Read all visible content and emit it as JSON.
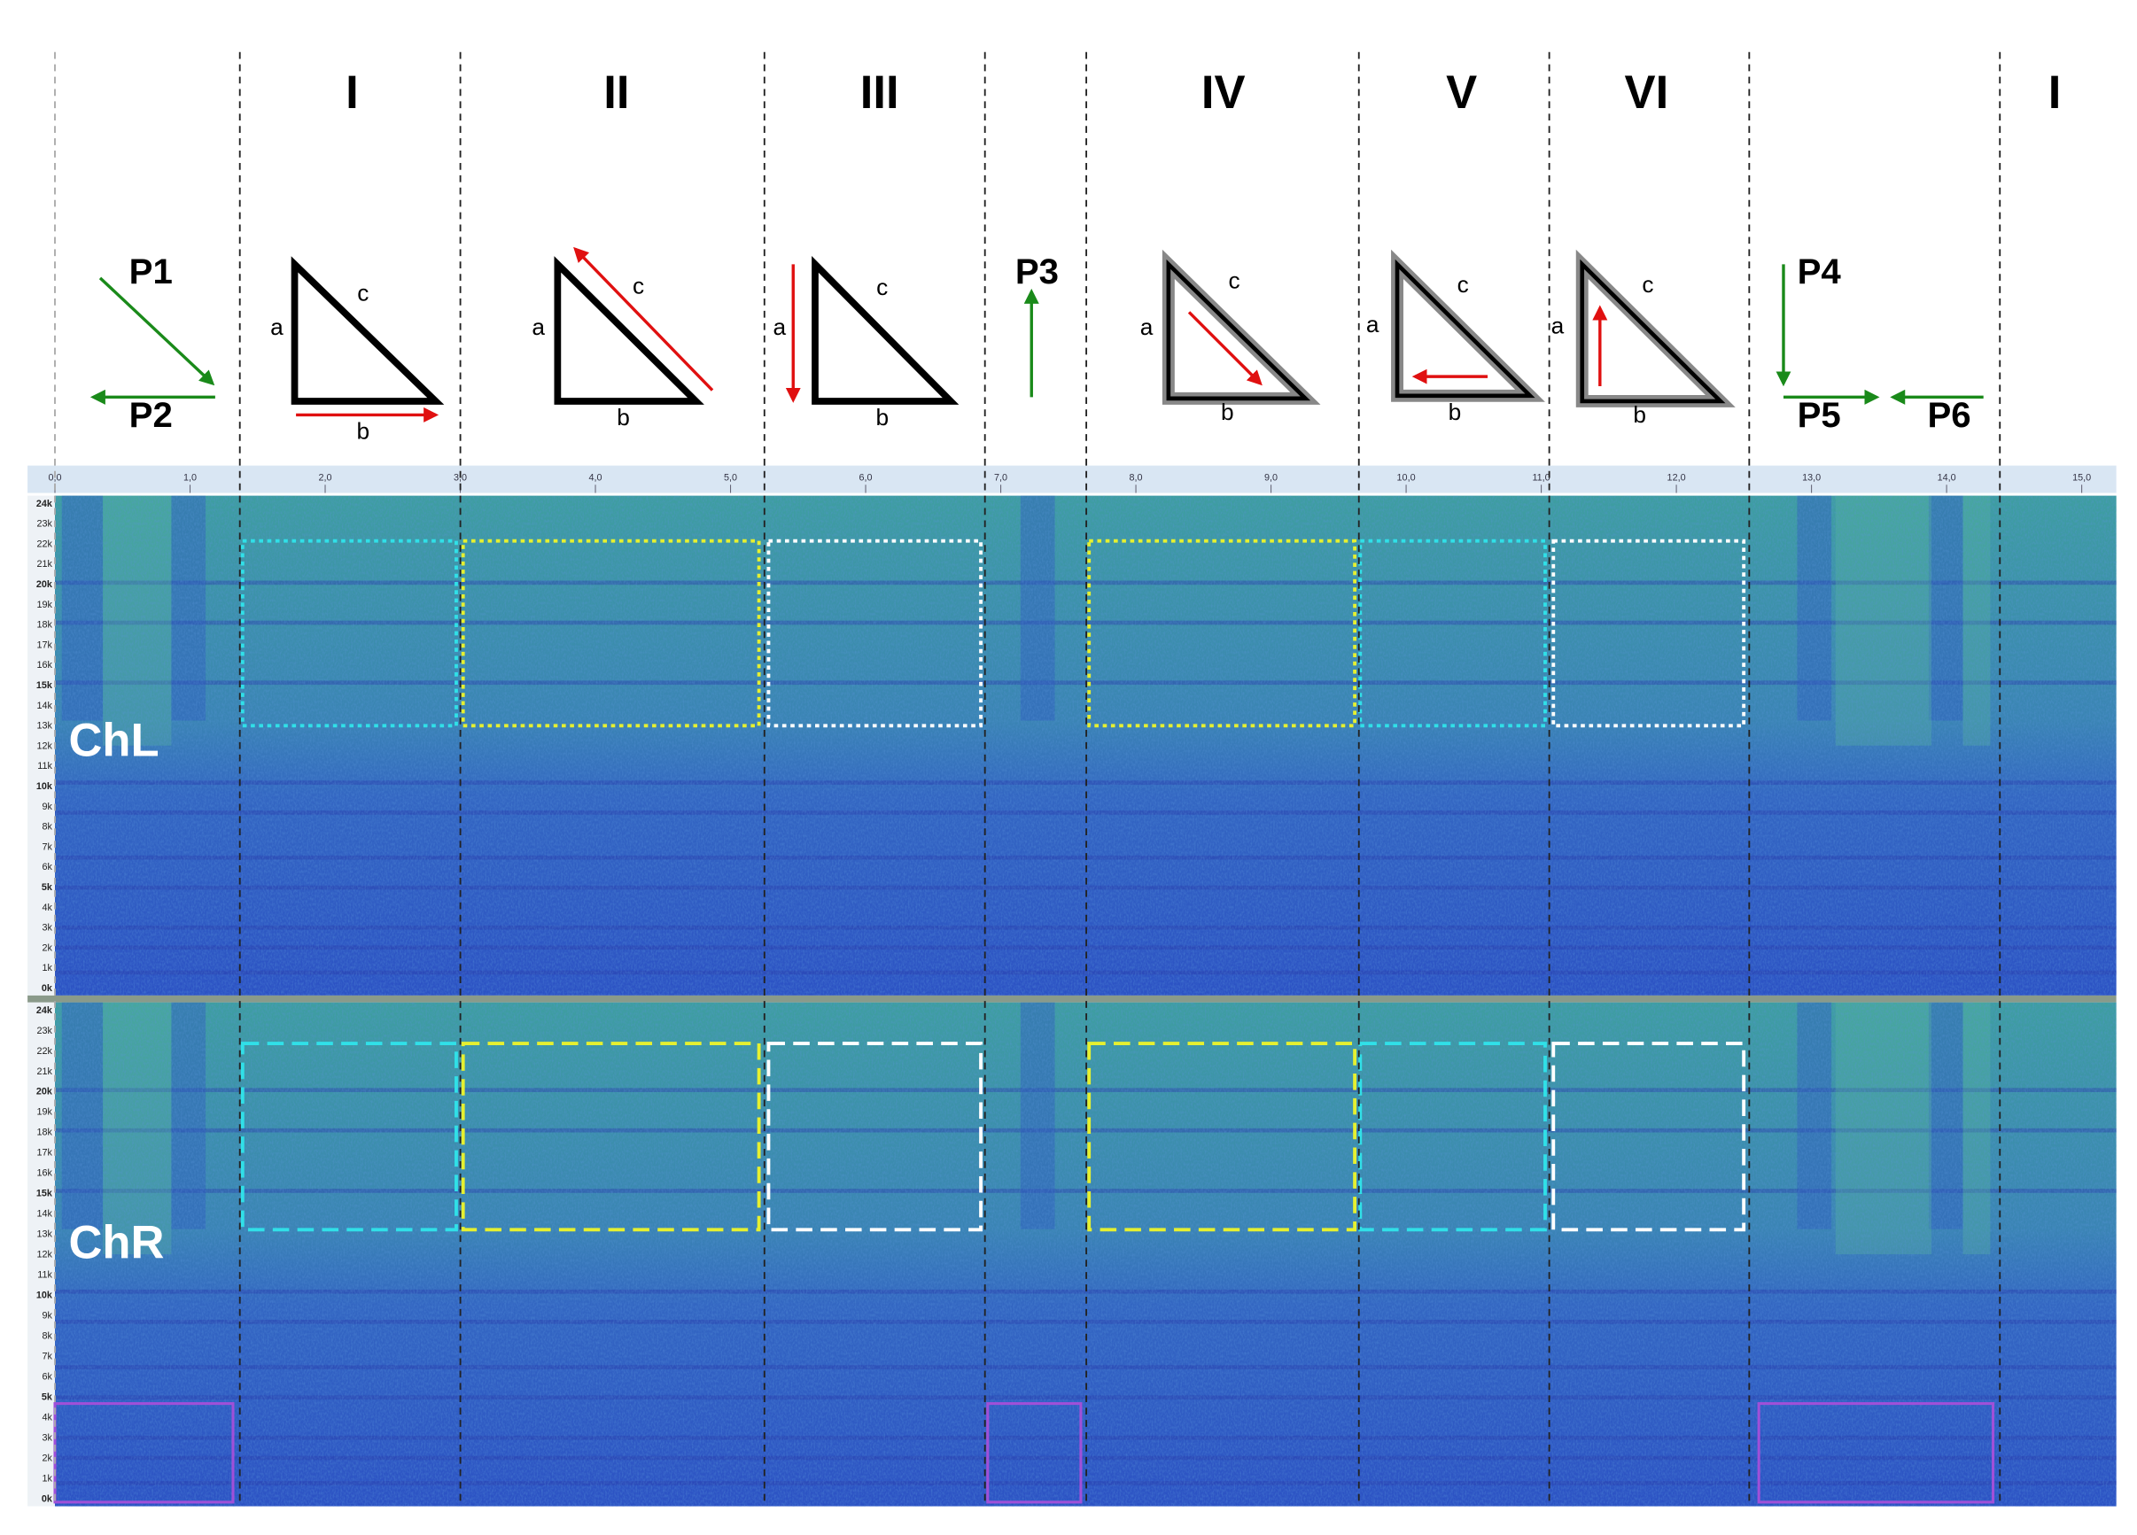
{
  "sections": [
    "I",
    "II",
    "III",
    "IV",
    "V",
    "VI",
    "I"
  ],
  "triangles": [
    {
      "a": "a",
      "b": "b",
      "c": "c"
    },
    {
      "a": "a",
      "b": "b",
      "c": "c"
    },
    {
      "a": "a",
      "b": "b",
      "c": "c"
    },
    {
      "a": "a",
      "b": "b",
      "c": "c"
    },
    {
      "a": "a",
      "b": "b",
      "c": "c"
    },
    {
      "a": "a",
      "b": "b",
      "c": "c"
    }
  ],
  "paths": [
    "P1",
    "P2",
    "P3",
    "P4",
    "P5",
    "P6"
  ],
  "time_axis": [
    "0,0",
    "1,0",
    "2,0",
    "3,0",
    "4,0",
    "5,0",
    "6,0",
    "7,0",
    "8,0",
    "9,0",
    "10,0",
    "11,0",
    "12,0",
    "13,0",
    "14,0",
    "15,0"
  ],
  "channels": [
    {
      "label": "ChL",
      "freq_labels": [
        "24k",
        "23k",
        "22k",
        "21k",
        "20k",
        "19k",
        "18k",
        "17k",
        "16k",
        "15k",
        "14k",
        "13k",
        "12k",
        "11k",
        "10k",
        "9k",
        "8k",
        "7k",
        "6k",
        "5k",
        "4k",
        "3k",
        "2k",
        "1k",
        "0k"
      ]
    },
    {
      "label": "ChR",
      "freq_labels": [
        "24k",
        "23k",
        "22k",
        "21k",
        "20k",
        "19k",
        "18k",
        "17k",
        "16k",
        "15k",
        "14k",
        "13k",
        "12k",
        "11k",
        "10k",
        "9k",
        "8k",
        "7k",
        "6k",
        "5k",
        "4k",
        "3k",
        "2k",
        "1k",
        "0k"
      ]
    }
  ]
}
